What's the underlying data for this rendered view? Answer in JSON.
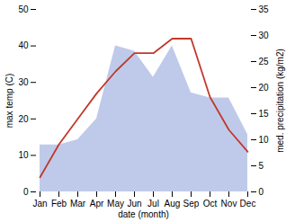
{
  "chart_data": {
    "type": "line",
    "categories": [
      "Jan",
      "Feb",
      "Mar",
      "Apr",
      "May",
      "Jun",
      "Jul",
      "Aug",
      "Sep",
      "Oct",
      "Nov",
      "Dec"
    ],
    "series": [
      {
        "type": "area",
        "axis": "y2",
        "color": "#b8c4e8",
        "values": [
          9,
          9,
          10,
          14,
          28,
          27,
          22,
          28,
          19,
          18,
          18,
          11
        ]
      },
      {
        "type": "line",
        "color": "#c0392b",
        "values": [
          4,
          13,
          20,
          27,
          33,
          38,
          38,
          42,
          42,
          26,
          17,
          11
        ]
      }
    ],
    "xlabel": "date (month)",
    "ylabel": "max temp (C)",
    "y2label": "med. precipitation (kg/m2)",
    "ylim": [
      0,
      50
    ],
    "yticks": [
      0,
      10,
      20,
      30,
      40,
      50
    ],
    "y2lim": [
      0,
      35
    ],
    "y2ticks": [
      0,
      5,
      10,
      15,
      20,
      25,
      30,
      35
    ]
  }
}
